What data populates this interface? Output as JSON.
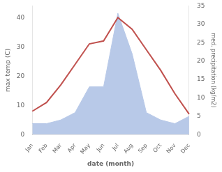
{
  "chart_data": {
    "type": "line",
    "categories": [
      "Jan",
      "Feb",
      "Mar",
      "Apr",
      "May",
      "Jun",
      "Jul",
      "Aug",
      "Sep",
      "Oct",
      "Nov",
      "Dec"
    ],
    "series": [
      {
        "color": "#c0504d",
        "values": [
          8,
          11,
          17,
          24,
          31,
          32,
          40,
          36,
          29,
          22,
          14,
          7
        ]
      },
      {
        "type": "area",
        "axis": "y2",
        "color": "#b8c9e8",
        "values": [
          3,
          3,
          4,
          6,
          13,
          13,
          33,
          22,
          6,
          4,
          3,
          5
        ]
      }
    ],
    "xlabel": "date (month)",
    "ylabel": "max temp (C)",
    "y2label": "med. precipitation (kg/m2)",
    "ylim": [
      0,
      44
    ],
    "yticks": [
      0,
      10,
      20,
      30,
      40
    ],
    "y2lim": [
      0,
      35
    ],
    "y2ticks": [
      0,
      5,
      10,
      15,
      20,
      25,
      30,
      35
    ],
    "grid": false
  }
}
